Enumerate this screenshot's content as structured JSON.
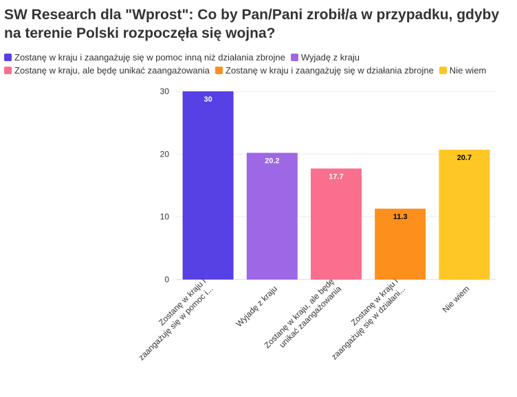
{
  "chart_data": {
    "type": "bar",
    "title": "SW Research dla \"Wprost\": Co by Pan/Pani zrobił/a w przypadku, gdyby na terenie Polski rozpoczęła się wojna?",
    "xlabel": "",
    "ylabel": "",
    "ylim": [
      0,
      30
    ],
    "yticks": [
      0,
      10,
      20,
      30
    ],
    "grid": true,
    "legend_placement": "top",
    "categories": [
      "Zostanę w kraju i zaangażuję się w pomoc inną niż działania zbrojne",
      "Wyjadę z kraju",
      "Zostanę w kraju, ale będę unikać zaangażowania",
      "Zostanę w kraju i zaangażuję się w działania zbrojne",
      "Nie wiem"
    ],
    "category_tick_labels": [
      [
        "Zostanę w kraju i",
        "zaangażuję się w pomoc i..."
      ],
      [
        "Wyjadę z kraju"
      ],
      [
        "Zostanę w kraju, ale będę",
        "unikać zaangażowania"
      ],
      [
        "Zostanę w kraju i",
        "zaangażuję się w działani..."
      ],
      [
        "Nie wiem"
      ]
    ],
    "values": [
      30,
      20.2,
      17.7,
      11.3,
      20.7
    ],
    "value_labels": [
      "30",
      "20.2",
      "17.7",
      "11.3",
      "20.7"
    ],
    "colors": [
      "#5740e4",
      "#9d67e6",
      "#fa6f8d",
      "#fd8f1d",
      "#fec726"
    ],
    "label_colors": [
      "#ffffff",
      "#ffffff",
      "#ffffff",
      "#000000",
      "#000000"
    ]
  }
}
